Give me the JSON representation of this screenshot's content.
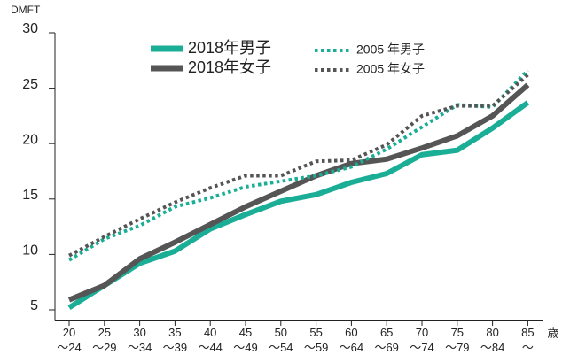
{
  "chart_data": {
    "type": "line",
    "y_label": "DMFT",
    "x_label": "歳",
    "categories": [
      "20\n～24",
      "25\n～29",
      "30\n～34",
      "35\n～39",
      "40\n～44",
      "45\n～49",
      "50\n～54",
      "55\n～59",
      "60\n～64",
      "65\n～69",
      "70\n～74",
      "75\n～79",
      "80\n～84",
      "85\n～"
    ],
    "series": [
      {
        "name": "2018年男子",
        "color": "#1aae96",
        "style": "solid",
        "values": [
          5.2,
          7.2,
          9.2,
          10.3,
          12.3,
          13.6,
          14.8,
          15.4,
          16.5,
          17.3,
          19.0,
          19.4,
          21.4,
          23.7
        ]
      },
      {
        "name": "2018年女子",
        "color": "#555555",
        "style": "solid",
        "values": [
          5.9,
          7.2,
          9.6,
          11.1,
          12.7,
          14.3,
          15.7,
          17.1,
          18.2,
          18.6,
          19.6,
          20.7,
          22.5,
          25.3
        ]
      },
      {
        "name": "2005 年男子",
        "color": "#1aae96",
        "style": "dotted",
        "values": [
          9.5,
          11.4,
          12.6,
          14.3,
          15.1,
          16.1,
          16.6,
          17.1,
          17.9,
          19.5,
          21.5,
          23.5,
          23.3,
          26.6
        ]
      },
      {
        "name": "2005 年女子",
        "color": "#555555",
        "style": "dotted",
        "values": [
          9.9,
          11.6,
          13.2,
          14.7,
          16.0,
          17.1,
          17.1,
          18.4,
          18.5,
          19.9,
          22.5,
          23.4,
          23.4,
          26.2
        ]
      }
    ],
    "ylim": [
      4,
      30
    ],
    "yticks": [
      5,
      10,
      15,
      20,
      25,
      30
    ],
    "grid": false
  }
}
